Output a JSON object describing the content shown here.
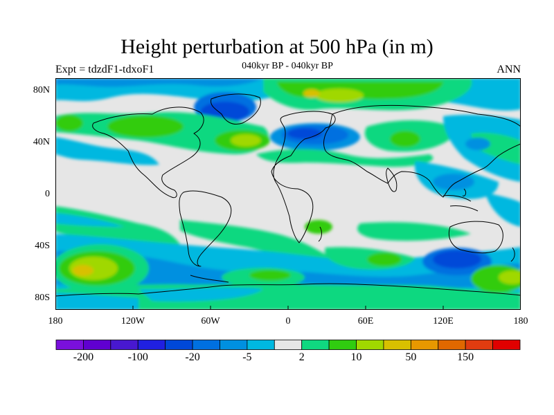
{
  "plot": {
    "title": "Height perturbation at 500 hPa (in m)",
    "left_label": "Expt = tdzdF1-tdxoF1",
    "center_label": "040kyr BP - 040kyr BP",
    "right_label": "ANN"
  },
  "axes": {
    "lat_ticks": [
      "80N",
      "40N",
      "0",
      "40S",
      "80S"
    ],
    "lon_ticks": [
      "180",
      "120W",
      "60W",
      "0",
      "60E",
      "120E",
      "180"
    ]
  },
  "colorbar": {
    "colors": [
      "#7a10dc",
      "#6000d0",
      "#4818d0",
      "#2020e0",
      "#0048d8",
      "#0070e0",
      "#0090e0",
      "#00b8e0",
      "#e6e6e6",
      "#10d880",
      "#30cc10",
      "#a0d800",
      "#d8c000",
      "#e89800",
      "#e06800",
      "#e03c10",
      "#e00000"
    ],
    "labels": [
      "-200",
      "-100",
      "-20",
      "-5",
      "2",
      "10",
      "50",
      "150"
    ]
  }
}
